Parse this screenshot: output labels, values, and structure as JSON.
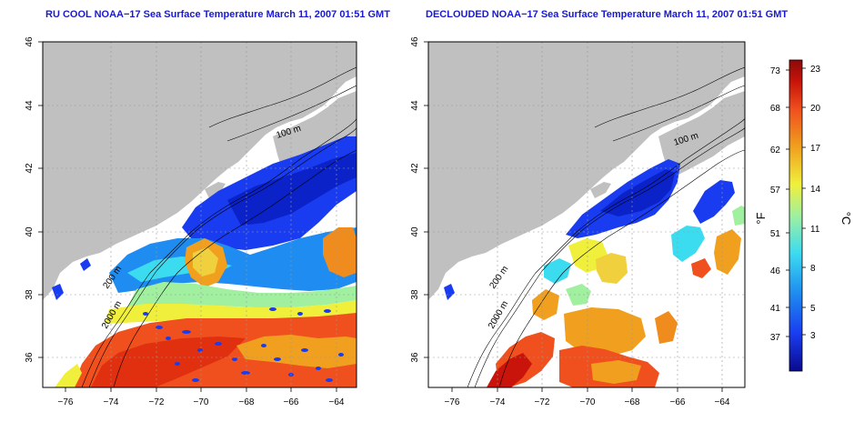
{
  "panels": [
    {
      "title": "RU COOL NOAA−17 Sea Surface Temperature March 11, 2007 01:51 GMT"
    },
    {
      "title": "DECLOUDED NOAA−17 Sea Surface Temperature March 11, 2007 01:51 GMT"
    }
  ],
  "axes": {
    "lat_ticks": [
      "46",
      "44",
      "42",
      "40",
      "38",
      "36"
    ],
    "lon_ticks": [
      "−76",
      "−74",
      "−72",
      "−70",
      "−68",
      "−66",
      "−64"
    ]
  },
  "contours": {
    "c100": "100 m",
    "c200": "200 m",
    "c2000": "2000 m"
  },
  "colorbar": {
    "f_ticks": [
      "73",
      "68",
      "62",
      "57",
      "51",
      "46",
      "41",
      "37"
    ],
    "c_ticks": [
      "23",
      "20",
      "17",
      "14",
      "11",
      "8",
      "5",
      "3"
    ],
    "f_label": "°F",
    "c_label": "°C",
    "colors": [
      "#0a0a8c",
      "#1a3cf0",
      "#1e8cf0",
      "#3cdcf0",
      "#a0f0a0",
      "#f0f03c",
      "#f0a01e",
      "#f0501e",
      "#c8140a",
      "#8c0a0a"
    ]
  },
  "colors": {
    "land": "#c0c0c0",
    "sea": "#ffffff",
    "title": "#1a1acc"
  }
}
